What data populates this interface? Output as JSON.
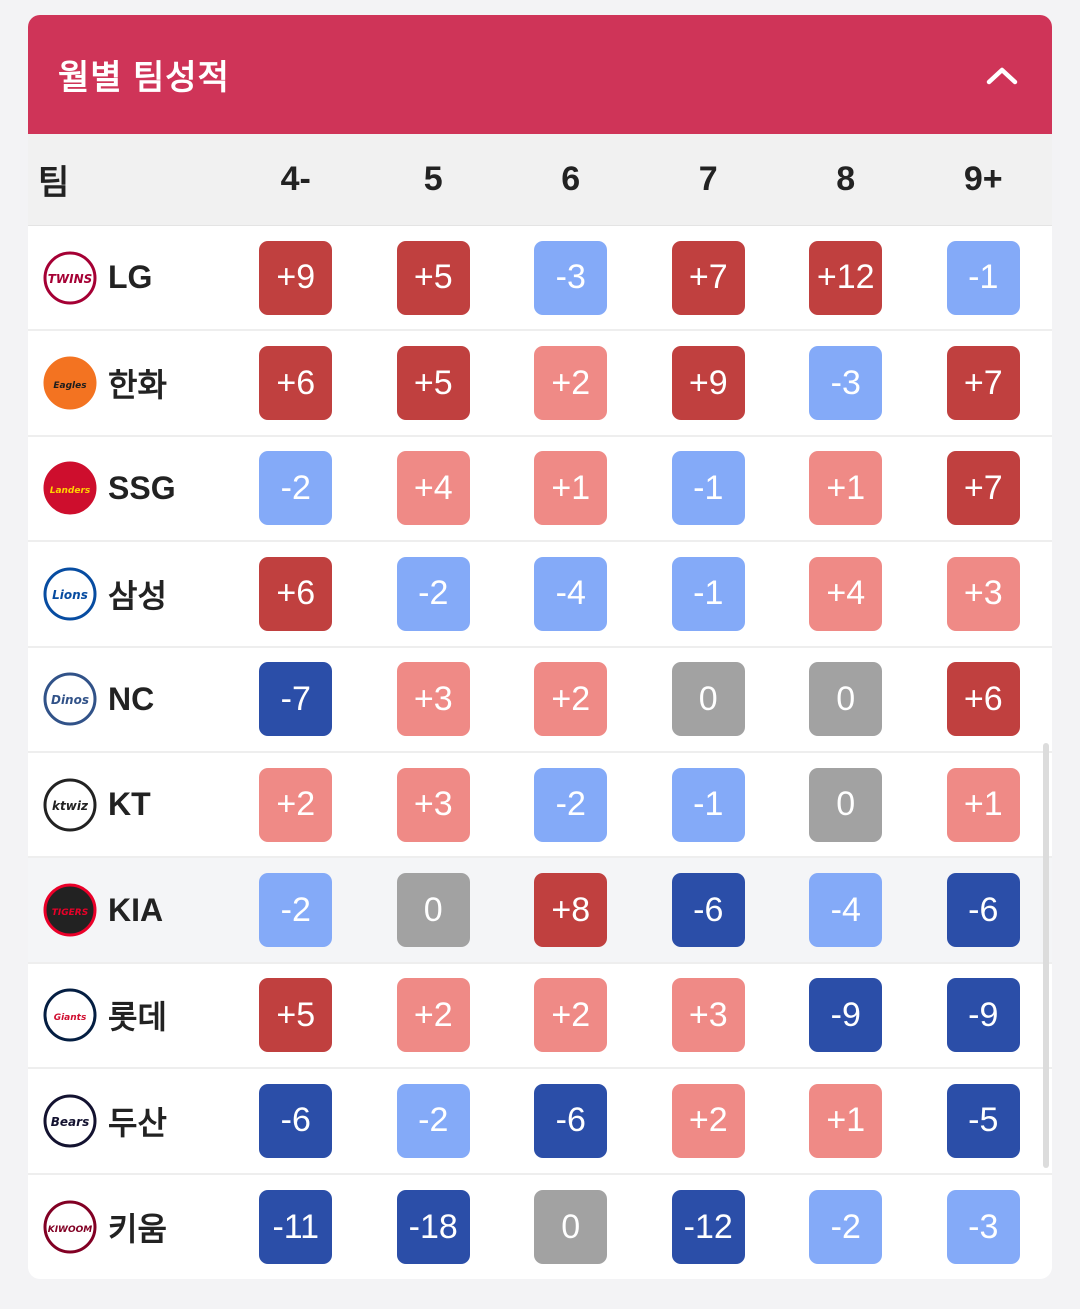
{
  "panel": {
    "title": "월별 팀성적"
  },
  "table": {
    "team_header": "팀",
    "months": [
      "4-",
      "5",
      "6",
      "7",
      "8",
      "9+"
    ]
  },
  "colors": {
    "strong_plus": "#c0403f",
    "mild_plus": "#ef8a86",
    "zero": "#a2a2a2",
    "mild_minus": "#84aaf8",
    "strong_minus": "#2b4ea8",
    "header": "#cf3458"
  },
  "teams": [
    {
      "name": "LG",
      "logo": "lg-twins-logo-icon",
      "values": [
        "+9",
        "+5",
        "-3",
        "+7",
        "+12",
        "-1"
      ]
    },
    {
      "name": "한화",
      "logo": "hanwha-eagles-logo-icon",
      "values": [
        "+6",
        "+5",
        "+2",
        "+9",
        "-3",
        "+7"
      ]
    },
    {
      "name": "SSG",
      "logo": "ssg-landers-logo-icon",
      "values": [
        "-2",
        "+4",
        "+1",
        "-1",
        "+1",
        "+7"
      ]
    },
    {
      "name": "삼성",
      "logo": "samsung-lions-logo-icon",
      "values": [
        "+6",
        "-2",
        "-4",
        "-1",
        "+4",
        "+3"
      ]
    },
    {
      "name": "NC",
      "logo": "nc-dinos-logo-icon",
      "values": [
        "-7",
        "+3",
        "+2",
        "0",
        "0",
        "+6"
      ]
    },
    {
      "name": "KT",
      "logo": "kt-wiz-logo-icon",
      "values": [
        "+2",
        "+3",
        "-2",
        "-1",
        "0",
        "+1"
      ]
    },
    {
      "name": "KIA",
      "logo": "kia-tigers-logo-icon",
      "values": [
        "-2",
        "0",
        "+8",
        "-6",
        "-4",
        "-6"
      ]
    },
    {
      "name": "롯데",
      "logo": "lotte-giants-logo-icon",
      "values": [
        "+5",
        "+2",
        "+2",
        "+3",
        "-9",
        "-9"
      ]
    },
    {
      "name": "두산",
      "logo": "doosan-bears-logo-icon",
      "values": [
        "-6",
        "-2",
        "-6",
        "+2",
        "+1",
        "-5"
      ]
    },
    {
      "name": "키움",
      "logo": "kiwoom-heroes-logo-icon",
      "values": [
        "-11",
        "-18",
        "0",
        "-12",
        "-2",
        "-3"
      ]
    }
  ]
}
